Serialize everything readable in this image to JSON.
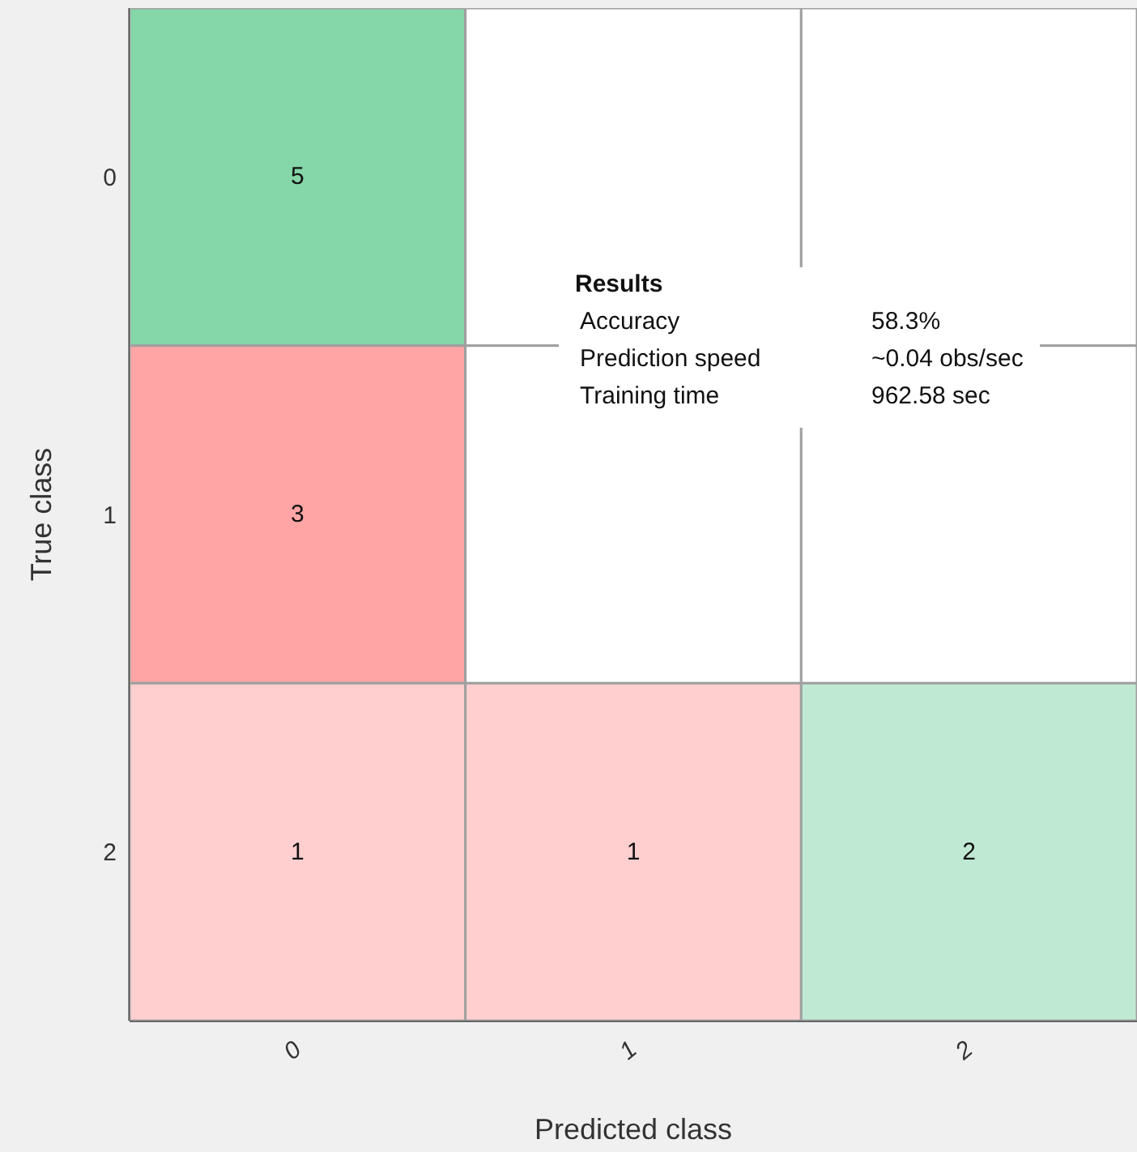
{
  "chart_data": {
    "type": "heatmap",
    "xlabel": "Predicted class",
    "ylabel": "True class",
    "categories": [
      "0",
      "1",
      "2"
    ],
    "y_categories": [
      "0",
      "1",
      "2"
    ],
    "cells": [
      [
        5,
        null,
        null
      ],
      [
        3,
        null,
        null
      ],
      [
        1,
        1,
        2
      ]
    ],
    "colors": [
      [
        "#85d6a9",
        null,
        null
      ],
      [
        "#ffa5a5",
        null,
        null
      ],
      [
        "#ffcfcf",
        "#ffcfcf",
        "#bfe9d3"
      ]
    ],
    "data_labels": true,
    "annotations": [
      "Results",
      "Accuracy",
      "58.3%",
      "Prediction speed",
      "~0.04 obs/sec",
      "Training time",
      "962.58 sec"
    ]
  }
}
